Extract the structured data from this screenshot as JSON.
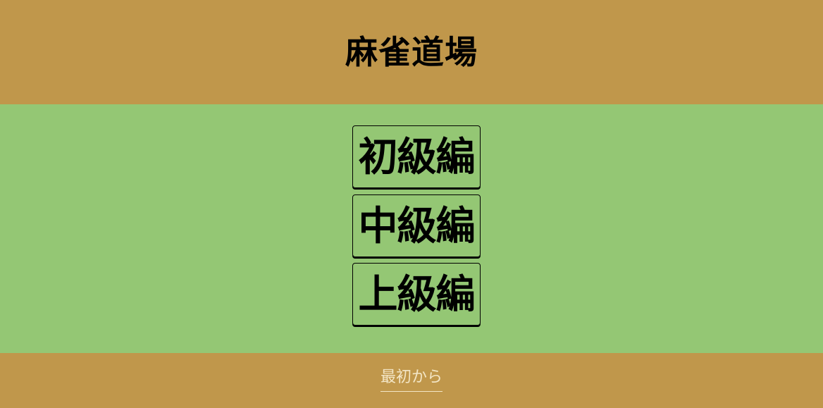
{
  "header": {
    "title": "麻雀道場"
  },
  "levels": [
    {
      "label": "初級編"
    },
    {
      "label": "中級編"
    },
    {
      "label": "上級編"
    }
  ],
  "footer": {
    "restart_label": "最初から"
  },
  "colors": {
    "header_bg": "#c0974b",
    "main_bg": "#94c774",
    "footer_link": "#f3e6c6"
  }
}
